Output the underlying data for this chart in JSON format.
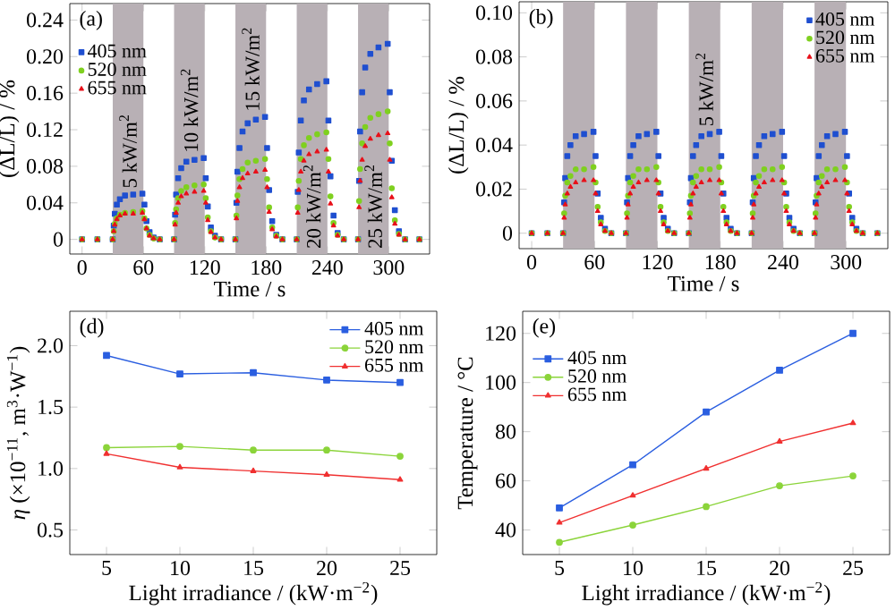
{
  "chart_data": [
    {
      "type": "scatter",
      "title": "(a)",
      "xlabel": "Time / s",
      "ylabel": "(ΔL/L) / %",
      "legend": "top left",
      "xlim": [
        -12,
        340
      ],
      "ylim": [
        -0.016,
        0.258
      ],
      "xticks": [
        0,
        60,
        120,
        180,
        240,
        300
      ],
      "yticks": [
        0,
        0.04,
        0.08,
        0.12,
        0.16,
        {
          "value": 0.2,
          "label": "0.20"
        },
        0.24
      ],
      "bands": [
        {
          "axis": "x",
          "from": 30,
          "to": 60,
          "label": "5 kW/m$^{2}$",
          "color": "#b8b0b5"
        },
        {
          "axis": "x",
          "from": 90,
          "to": 120,
          "label": "10 kW/m$^{2}$",
          "color": "#b8b0b5"
        },
        {
          "axis": "x",
          "from": 150,
          "to": 180,
          "label": "15 kW/m$^{2}$",
          "color": "#b8b0b5"
        },
        {
          "axis": "x",
          "from": 210,
          "to": 240,
          "label": "20 kW/m$^{2}$",
          "color": "#b8b0b5"
        },
        {
          "axis": "x",
          "from": 270,
          "to": 300,
          "label": "25 kW/m$^{2}$",
          "color": "#b8b0b5"
        }
      ],
      "x": [
        0,
        15,
        30,
        31,
        32,
        34,
        37,
        42,
        50,
        59,
        61,
        63,
        66,
        70,
        76,
        90,
        91,
        92,
        94,
        97,
        102,
        110,
        119,
        121,
        123,
        126,
        130,
        136,
        150,
        151,
        152,
        154,
        157,
        162,
        170,
        179,
        181,
        183,
        186,
        190,
        196,
        210,
        211,
        212,
        214,
        217,
        222,
        230,
        239,
        241,
        243,
        246,
        250,
        256,
        270,
        271,
        272,
        274,
        277,
        282,
        290,
        299,
        301,
        303,
        306,
        310,
        316,
        330
      ],
      "series": [
        {
          "name": "405 nm",
          "color": "#1f4fd0",
          "marker": "square",
          "values": [
            0,
            0,
            0,
            0.015,
            0.028,
            0.038,
            0.044,
            0.048,
            0.049,
            0.05,
            0.038,
            0.02,
            0.008,
            0.002,
            0,
            0,
            0.027,
            0.049,
            0.067,
            0.078,
            0.085,
            0.087,
            0.089,
            0.067,
            0.036,
            0.013,
            0.004,
            0,
            0,
            0.04,
            0.074,
            0.1,
            0.118,
            0.127,
            0.131,
            0.134,
            0.1,
            0.054,
            0.02,
            0.005,
            0,
            0,
            0.052,
            0.095,
            0.13,
            0.152,
            0.164,
            0.17,
            0.173,
            0.13,
            0.069,
            0.026,
            0.007,
            0,
            0,
            0.064,
            0.118,
            0.161,
            0.188,
            0.203,
            0.21,
            0.214,
            0.161,
            0.086,
            0.032,
            0.009,
            0,
            0
          ]
        },
        {
          "name": "520 nm",
          "color": "#7fd01f",
          "marker": "circle",
          "values": [
            0,
            0,
            0,
            0.009,
            0.017,
            0.023,
            0.027,
            0.029,
            0.03,
            0.031,
            0.023,
            0.012,
            0.005,
            0.001,
            0,
            0,
            0.018,
            0.033,
            0.045,
            0.053,
            0.057,
            0.059,
            0.06,
            0.045,
            0.024,
            0.009,
            0.002,
            0,
            0,
            0.026,
            0.048,
            0.066,
            0.077,
            0.084,
            0.086,
            0.088,
            0.066,
            0.035,
            0.013,
            0.004,
            0,
            0,
            0.035,
            0.064,
            0.088,
            0.103,
            0.111,
            0.115,
            0.117,
            0.088,
            0.047,
            0.018,
            0.005,
            0,
            0,
            0.042,
            0.077,
            0.105,
            0.123,
            0.133,
            0.137,
            0.14,
            0.105,
            0.056,
            0.021,
            0.006,
            0,
            0
          ]
        },
        {
          "name": "655 nm",
          "color": "#e8101a",
          "marker": "triangle",
          "values": [
            0,
            0,
            0,
            0.009,
            0.016,
            0.022,
            0.026,
            0.028,
            0.028,
            0.029,
            0.022,
            0.012,
            0.004,
            0.001,
            0,
            0,
            0.016,
            0.029,
            0.04,
            0.047,
            0.05,
            0.052,
            0.053,
            0.04,
            0.021,
            0.008,
            0.002,
            0,
            0,
            0.023,
            0.042,
            0.057,
            0.067,
            0.072,
            0.074,
            0.076,
            0.057,
            0.03,
            0.011,
            0.003,
            0,
            0,
            0.029,
            0.054,
            0.074,
            0.086,
            0.093,
            0.096,
            0.098,
            0.074,
            0.039,
            0.015,
            0.004,
            0,
            0,
            0.035,
            0.064,
            0.087,
            0.102,
            0.11,
            0.114,
            0.116,
            0.087,
            0.046,
            0.017,
            0.005,
            0,
            0
          ]
        }
      ]
    },
    {
      "type": "scatter",
      "title": "(b)",
      "xlabel": "Time / s",
      "ylabel": "(ΔL/L) / %",
      "legend": "top right",
      "xlim": [
        -12,
        340
      ],
      "ylim": [
        -0.007,
        0.105
      ],
      "xticks": [
        0,
        60,
        120,
        180,
        240,
        300
      ],
      "yticks": [
        0,
        0.02,
        0.04,
        0.06,
        0.08,
        {
          "value": 0.1,
          "label": "0.10"
        }
      ],
      "bands": [
        {
          "axis": "x",
          "from": 30,
          "to": 60,
          "color": "#b8b0b5"
        },
        {
          "axis": "x",
          "from": 90,
          "to": 120,
          "color": "#b8b0b5"
        },
        {
          "axis": "x",
          "from": 150,
          "to": 180,
          "label": "5 kW/m$^{2}$",
          "color": "#b8b0b5"
        },
        {
          "axis": "x",
          "from": 210,
          "to": 240,
          "color": "#b8b0b5"
        },
        {
          "axis": "x",
          "from": 270,
          "to": 300,
          "color": "#b8b0b5"
        }
      ],
      "x": [
        0,
        15,
        30,
        31,
        32,
        34,
        37,
        42,
        50,
        59,
        61,
        63,
        66,
        70,
        76,
        90,
        91,
        92,
        94,
        97,
        102,
        110,
        119,
        121,
        123,
        126,
        130,
        136,
        150,
        151,
        152,
        154,
        157,
        162,
        170,
        179,
        181,
        183,
        186,
        190,
        196,
        210,
        211,
        212,
        214,
        217,
        222,
        230,
        239,
        241,
        243,
        246,
        250,
        256,
        270,
        271,
        272,
        274,
        277,
        282,
        290,
        299,
        301,
        303,
        306,
        310,
        316,
        330
      ],
      "series": [
        {
          "name": "405 nm",
          "color": "#1f4fd0",
          "marker": "square",
          "values": [
            0,
            0,
            0,
            0.014,
            0.025,
            0.035,
            0.04,
            0.044,
            0.045,
            0.046,
            0.035,
            0.018,
            0.007,
            0.002,
            0,
            0,
            0.014,
            0.025,
            0.035,
            0.04,
            0.044,
            0.045,
            0.046,
            0.035,
            0.018,
            0.007,
            0.002,
            0,
            0,
            0.014,
            0.025,
            0.035,
            0.04,
            0.044,
            0.045,
            0.046,
            0.035,
            0.018,
            0.007,
            0.002,
            0,
            0,
            0.014,
            0.025,
            0.035,
            0.04,
            0.044,
            0.045,
            0.046,
            0.035,
            0.018,
            0.007,
            0.002,
            0,
            0,
            0.014,
            0.025,
            0.035,
            0.04,
            0.044,
            0.045,
            0.046,
            0.035,
            0.018,
            0.007,
            0.002,
            0,
            0
          ]
        },
        {
          "name": "520 nm",
          "color": "#7fd01f",
          "marker": "circle",
          "values": [
            0,
            0,
            0,
            0.009,
            0.017,
            0.023,
            0.026,
            0.029,
            0.029,
            0.03,
            0.023,
            0.012,
            0.005,
            0.001,
            0,
            0,
            0.009,
            0.017,
            0.023,
            0.026,
            0.029,
            0.029,
            0.03,
            0.023,
            0.012,
            0.005,
            0.001,
            0,
            0,
            0.009,
            0.017,
            0.023,
            0.026,
            0.029,
            0.029,
            0.03,
            0.023,
            0.012,
            0.005,
            0.001,
            0,
            0,
            0.009,
            0.017,
            0.023,
            0.026,
            0.029,
            0.029,
            0.03,
            0.023,
            0.012,
            0.005,
            0.001,
            0,
            0,
            0.009,
            0.017,
            0.023,
            0.026,
            0.029,
            0.029,
            0.03,
            0.023,
            0.012,
            0.005,
            0.001,
            0,
            0
          ]
        },
        {
          "name": "655 nm",
          "color": "#e8101a",
          "marker": "triangle",
          "values": [
            0,
            0,
            0,
            0.007,
            0.013,
            0.018,
            0.021,
            0.023,
            0.024,
            0.024,
            0.018,
            0.01,
            0.004,
            0.001,
            0,
            0,
            0.007,
            0.013,
            0.018,
            0.021,
            0.023,
            0.024,
            0.024,
            0.018,
            0.01,
            0.004,
            0.001,
            0,
            0,
            0.007,
            0.013,
            0.018,
            0.021,
            0.023,
            0.024,
            0.024,
            0.018,
            0.01,
            0.004,
            0.001,
            0,
            0,
            0.007,
            0.013,
            0.018,
            0.021,
            0.023,
            0.024,
            0.024,
            0.018,
            0.01,
            0.004,
            0.001,
            0,
            0,
            0.007,
            0.013,
            0.018,
            0.021,
            0.023,
            0.024,
            0.024,
            0.018,
            0.01,
            0.004,
            0.001,
            0,
            0
          ]
        }
      ]
    },
    {
      "type": "line",
      "title": "(d)",
      "xlabel": "Light irradiance / (kW·m$^{−2}$)",
      "ylabel": "*η* (×10$^{−11}$, m$^{3}$·W$^{−1}$)",
      "legend": "top right",
      "xlim": [
        2.5,
        27.5
      ],
      "ylim": [
        0.3,
        2.28
      ],
      "xticks": [
        5,
        10,
        15,
        20,
        25
      ],
      "yticks": [
        0.5,
        {
          "value": 1.0,
          "label": "1.0"
        },
        1.5,
        {
          "value": 2.0,
          "label": "2.0"
        }
      ],
      "x": [
        5,
        10,
        15,
        20,
        25
      ],
      "series": [
        {
          "name": "405 nm",
          "color": "#2a5ee0",
          "marker": "square",
          "values": [
            1.92,
            1.77,
            1.78,
            1.72,
            1.7
          ]
        },
        {
          "name": "520 nm",
          "color": "#8bd43a",
          "marker": "circle",
          "values": [
            1.17,
            1.18,
            1.15,
            1.15,
            1.1
          ]
        },
        {
          "name": "655 nm",
          "color": "#f03030",
          "marker": "triangle",
          "values": [
            1.12,
            1.01,
            0.98,
            0.95,
            0.91
          ]
        }
      ]
    },
    {
      "type": "line",
      "title": "(e)",
      "xlabel": "Light irradiance / (kW·m$^{−2}$)",
      "ylabel": "Temperature / °C",
      "legend": "top left",
      "xlim": [
        2.5,
        27.5
      ],
      "ylim": [
        30,
        129
      ],
      "xticks": [
        5,
        10,
        15,
        20,
        25
      ],
      "yticks": [
        40,
        60,
        80,
        100,
        120
      ],
      "x": [
        5,
        10,
        15,
        20,
        25
      ],
      "series": [
        {
          "name": "405 nm",
          "color": "#2a5ee0",
          "marker": "square",
          "values": [
            49,
            66.5,
            88,
            105,
            120
          ]
        },
        {
          "name": "520 nm",
          "color": "#8bd43a",
          "marker": "circle",
          "values": [
            35,
            42,
            49.5,
            58,
            62
          ]
        },
        {
          "name": "655 nm",
          "color": "#f03030",
          "marker": "triangle",
          "values": [
            43,
            54,
            65,
            76,
            83.5
          ]
        }
      ]
    }
  ]
}
